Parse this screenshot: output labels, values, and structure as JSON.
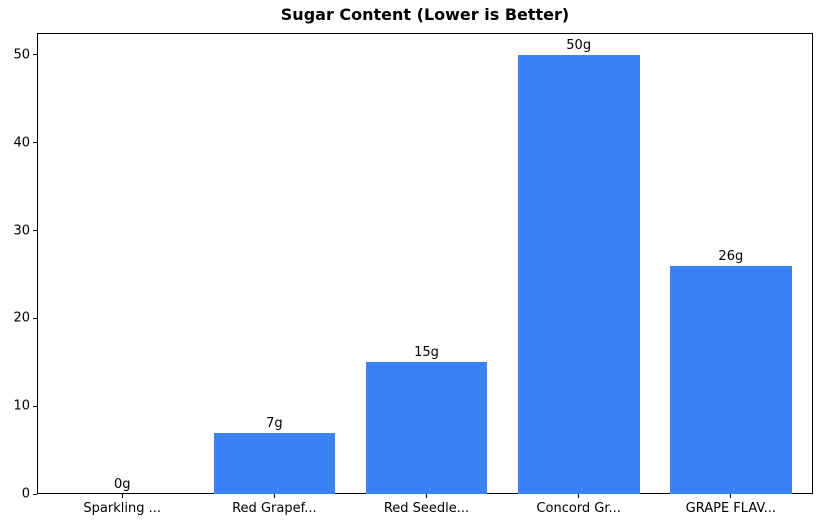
{
  "chart_data": {
    "type": "bar",
    "title": "Sugar Content (Lower is Better)",
    "xlabel": "",
    "ylabel": "",
    "categories": [
      "Sparkling ...",
      "Red Grapef...",
      "Red Seedle...",
      "Concord Gr...",
      "GRAPE FLAV..."
    ],
    "values": [
      0,
      7,
      15,
      50,
      26
    ],
    "bar_labels": [
      "0g",
      "7g",
      "15g",
      "50g",
      "26g"
    ],
    "yticks": [
      0,
      10,
      20,
      30,
      40,
      50
    ],
    "ylim": [
      0,
      52.5
    ],
    "xlim": [
      -0.56,
      4.54
    ],
    "bar_width_units": 0.8,
    "grid": false,
    "legend": "none",
    "colors": {
      "bar": "#3b82f6",
      "text": "#000000",
      "spine": "#000000",
      "background": "#ffffff"
    }
  }
}
